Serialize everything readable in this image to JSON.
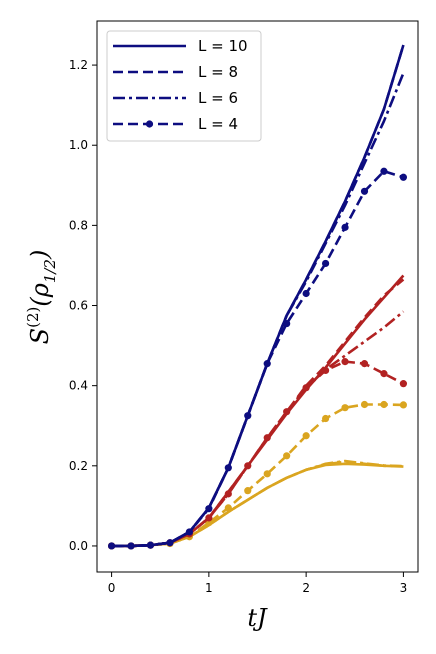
{
  "chart_data": {
    "type": "line",
    "xlabel": "tJ",
    "ylabel": "S^(2)(ρ_1/2)",
    "xlim": [
      -0.15,
      3.15
    ],
    "ylim": [
      -0.065,
      1.31
    ],
    "xticks": [
      0,
      1,
      2,
      3
    ],
    "yticks": [
      0.0,
      0.2,
      0.4,
      0.6,
      0.8,
      1.0,
      1.2
    ],
    "xtick_labels": [
      "0",
      "1",
      "2",
      "3"
    ],
    "ytick_labels": [
      "0.0",
      "0.2",
      "0.4",
      "0.6",
      "0.8",
      "1.0",
      "1.2"
    ],
    "grid": false,
    "legend_position": "top-left",
    "legend": [
      {
        "label": "L = 10",
        "style": "solid"
      },
      {
        "label": "L = 8",
        "style": "dashed"
      },
      {
        "label": "L = 6",
        "style": "dashdot"
      },
      {
        "label": "L = 4",
        "style": "dashed-markers"
      }
    ],
    "colors": {
      "navy": "#0d0d80",
      "red": "#b22222",
      "gold": "#daa520"
    },
    "series": [
      {
        "group": "navy",
        "L": 10,
        "style": "solid",
        "x": [
          0,
          0.2,
          0.4,
          0.6,
          0.8,
          1.0,
          1.2,
          1.4,
          1.6,
          1.8,
          2.0,
          2.2,
          2.4,
          2.6,
          2.8,
          3.0
        ],
        "y": [
          0,
          0,
          0.002,
          0.008,
          0.035,
          0.095,
          0.195,
          0.325,
          0.455,
          0.575,
          0.665,
          0.76,
          0.86,
          0.97,
          1.09,
          1.25
        ]
      },
      {
        "group": "navy",
        "L": 8,
        "style": "dashed",
        "x": [
          0,
          0.2,
          0.4,
          0.6,
          0.8,
          1.0,
          1.2,
          1.4,
          1.6,
          1.8,
          2.0,
          2.2,
          2.4,
          2.6,
          2.8,
          3.0
        ],
        "y": [
          0,
          0,
          0.002,
          0.008,
          0.035,
          0.095,
          0.195,
          0.325,
          0.455,
          0.575,
          0.665,
          0.76,
          0.86,
          0.97,
          1.09,
          1.25
        ]
      },
      {
        "group": "navy",
        "L": 6,
        "style": "dashdot",
        "x": [
          0,
          0.2,
          0.4,
          0.6,
          0.8,
          1.0,
          1.2,
          1.4,
          1.6,
          1.8,
          2.0,
          2.2,
          2.4,
          2.6,
          2.8,
          3.0
        ],
        "y": [
          0,
          0,
          0.002,
          0.008,
          0.035,
          0.095,
          0.195,
          0.325,
          0.455,
          0.575,
          0.66,
          0.755,
          0.85,
          0.955,
          1.06,
          1.18
        ]
      },
      {
        "group": "navy",
        "L": 4,
        "style": "dashed-markers",
        "x": [
          0,
          0.2,
          0.4,
          0.6,
          0.8,
          1.0,
          1.2,
          1.4,
          1.6,
          1.8,
          2.0,
          2.2,
          2.4,
          2.6,
          2.8,
          3.0
        ],
        "y": [
          0,
          0,
          0.002,
          0.008,
          0.035,
          0.093,
          0.195,
          0.325,
          0.455,
          0.555,
          0.63,
          0.705,
          0.795,
          0.885,
          0.935,
          0.92
        ]
      },
      {
        "group": "red",
        "L": 10,
        "style": "solid",
        "x": [
          0,
          0.2,
          0.4,
          0.6,
          0.8,
          1.0,
          1.2,
          1.4,
          1.6,
          1.8,
          2.0,
          2.2,
          2.4,
          2.6,
          2.8,
          3.0
        ],
        "y": [
          0,
          0,
          0.002,
          0.008,
          0.03,
          0.07,
          0.135,
          0.2,
          0.265,
          0.33,
          0.39,
          0.445,
          0.505,
          0.565,
          0.62,
          0.675
        ]
      },
      {
        "group": "red",
        "L": 8,
        "style": "dashed",
        "x": [
          0,
          0.2,
          0.4,
          0.6,
          0.8,
          1.0,
          1.2,
          1.4,
          1.6,
          1.8,
          2.0,
          2.2,
          2.4,
          2.6,
          2.8,
          3.0
        ],
        "y": [
          0,
          0,
          0.002,
          0.008,
          0.03,
          0.07,
          0.135,
          0.2,
          0.268,
          0.335,
          0.4,
          0.45,
          0.51,
          0.57,
          0.625,
          0.665
        ]
      },
      {
        "group": "red",
        "L": 6,
        "style": "dashdot",
        "x": [
          0,
          0.2,
          0.4,
          0.6,
          0.8,
          1.0,
          1.2,
          1.4,
          1.6,
          1.8,
          2.0,
          2.2,
          2.4,
          2.6,
          2.8,
          3.0
        ],
        "y": [
          0,
          0,
          0.002,
          0.008,
          0.03,
          0.07,
          0.13,
          0.2,
          0.27,
          0.335,
          0.395,
          0.44,
          0.475,
          0.51,
          0.545,
          0.585
        ]
      },
      {
        "group": "red",
        "L": 4,
        "style": "dashed-markers",
        "x": [
          0,
          0.2,
          0.4,
          0.6,
          0.8,
          1.0,
          1.2,
          1.4,
          1.6,
          1.8,
          2.0,
          2.2,
          2.4,
          2.6,
          2.8,
          3.0
        ],
        "y": [
          0,
          0,
          0.002,
          0.008,
          0.03,
          0.07,
          0.13,
          0.2,
          0.27,
          0.335,
          0.395,
          0.438,
          0.46,
          0.455,
          0.43,
          0.405
        ]
      },
      {
        "group": "gold",
        "L": 10,
        "style": "solid",
        "x": [
          0,
          0.2,
          0.4,
          0.6,
          0.8,
          1.0,
          1.2,
          1.4,
          1.6,
          1.8,
          2.0,
          2.2,
          2.4,
          2.6,
          2.8,
          3.0
        ],
        "y": [
          0,
          0,
          0.002,
          0.006,
          0.023,
          0.052,
          0.085,
          0.115,
          0.145,
          0.17,
          0.19,
          0.202,
          0.205,
          0.203,
          0.2,
          0.198
        ]
      },
      {
        "group": "gold",
        "L": 8,
        "style": "dashed",
        "x": [
          0,
          0.2,
          0.4,
          0.6,
          0.8,
          1.0,
          1.2,
          1.4,
          1.6,
          1.8,
          2.0,
          2.2,
          2.4,
          2.6,
          2.8,
          3.0
        ],
        "y": [
          0,
          0,
          0.002,
          0.006,
          0.023,
          0.052,
          0.085,
          0.115,
          0.145,
          0.17,
          0.19,
          0.204,
          0.21,
          0.205,
          0.2,
          0.199
        ]
      },
      {
        "group": "gold",
        "L": 6,
        "style": "dashdot",
        "x": [
          0,
          0.2,
          0.4,
          0.6,
          0.8,
          1.0,
          1.2,
          1.4,
          1.6,
          1.8,
          2.0,
          2.2,
          2.4,
          2.6,
          2.8,
          3.0
        ],
        "y": [
          0,
          0,
          0.002,
          0.006,
          0.023,
          0.052,
          0.085,
          0.115,
          0.145,
          0.17,
          0.19,
          0.205,
          0.212,
          0.206,
          0.201,
          0.199
        ]
      },
      {
        "group": "gold",
        "L": 4,
        "style": "dashed-markers",
        "x": [
          0,
          0.2,
          0.4,
          0.6,
          0.8,
          1.0,
          1.2,
          1.4,
          1.6,
          1.8,
          2.0,
          2.2,
          2.4,
          2.6,
          2.8,
          3.0
        ],
        "y": [
          0,
          0,
          0.002,
          0.006,
          0.023,
          0.058,
          0.095,
          0.138,
          0.18,
          0.225,
          0.275,
          0.318,
          0.345,
          0.353,
          0.353,
          0.352
        ]
      }
    ]
  }
}
